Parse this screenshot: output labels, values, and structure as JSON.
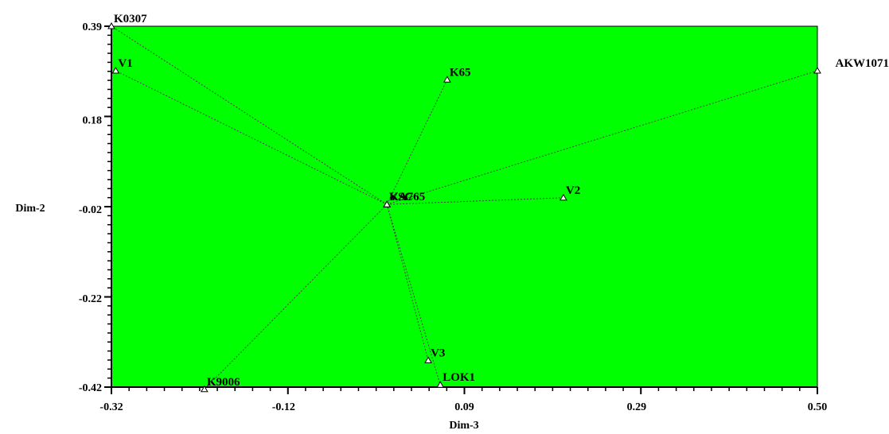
{
  "chart_data": {
    "type": "scatter",
    "title": "",
    "xlabel": "Dim-3",
    "ylabel": "Dim-2",
    "xlim": [
      -0.32,
      0.5
    ],
    "ylim": [
      -0.42,
      0.39
    ],
    "xticks": [
      -0.32,
      -0.12,
      0.09,
      0.29,
      0.5
    ],
    "xtick_labels": [
      "-0.32",
      "-0.12",
      "0.09",
      "0.29",
      "0.50"
    ],
    "yticks": [
      0.39,
      0.18,
      -0.02,
      -0.22,
      -0.42
    ],
    "ytick_labels": [
      "0.39",
      "0.18",
      "-0.02",
      "-0.22",
      "-0.42"
    ],
    "grid": false,
    "colors": {
      "plot_background": "#00ff00",
      "connector": "#444444",
      "marker_fill": "#ffffff",
      "marker_stroke": "#000000"
    },
    "hub": {
      "x": 0.0,
      "y": -0.01
    },
    "points": [
      {
        "label": "K0307",
        "x": -0.32,
        "y": 0.39
      },
      {
        "label": "V1",
        "x": -0.315,
        "y": 0.29
      },
      {
        "label": "K65",
        "x": 0.07,
        "y": 0.27
      },
      {
        "label": "AKW1071",
        "x": 0.5,
        "y": 0.29
      },
      {
        "label": "KA",
        "x": 0.0,
        "y": -0.01
      },
      {
        "label": "VSC",
        "x": 0.0,
        "y": -0.01
      },
      {
        "label": "KA765",
        "x": 0.0,
        "y": -0.01
      },
      {
        "label": "V2",
        "x": 0.205,
        "y": 0.005
      },
      {
        "label": "V3",
        "x": 0.048,
        "y": -0.36
      },
      {
        "label": "LOK1",
        "x": 0.062,
        "y": -0.415
      },
      {
        "label": "K9006",
        "x": -0.212,
        "y": -0.425
      }
    ]
  }
}
